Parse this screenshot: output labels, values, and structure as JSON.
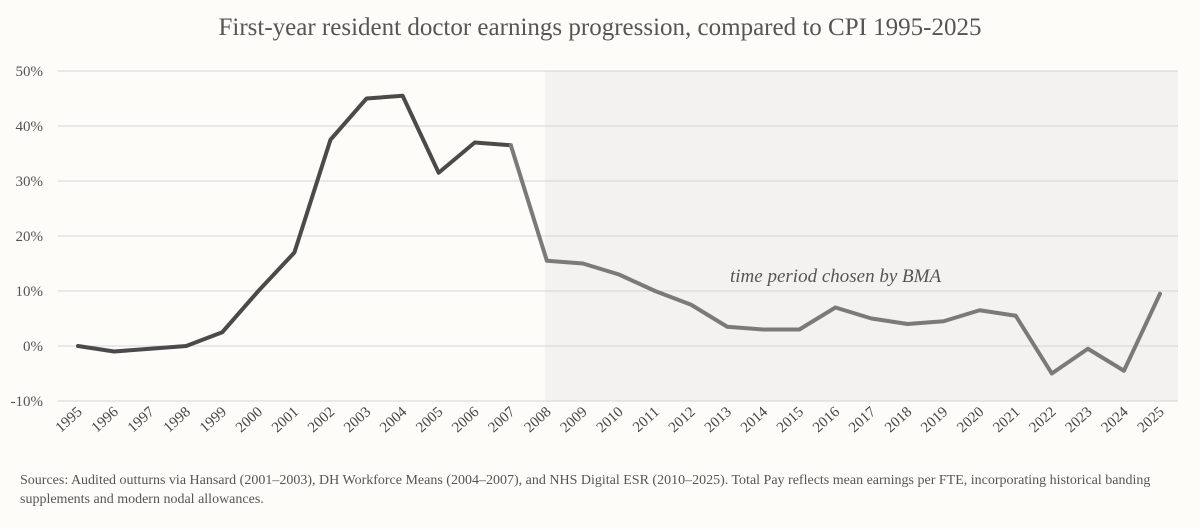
{
  "chart_data": {
    "type": "line",
    "title": "First-year resident doctor earnings progression, compared to CPI 1995-2025",
    "xlabel": "",
    "ylabel": "",
    "x": [
      "1995",
      "1996",
      "1997",
      "1998",
      "1999",
      "2000",
      "2001",
      "2002",
      "2003",
      "2004",
      "2005",
      "2006",
      "2007",
      "2008",
      "2009",
      "2010",
      "2011",
      "2012",
      "2013",
      "2014",
      "2015",
      "2016",
      "2017",
      "2018",
      "2019",
      "2020",
      "2021",
      "2022",
      "2023",
      "2024",
      "2025"
    ],
    "series": [
      {
        "values": [
          0,
          -1,
          -0.5,
          0,
          2.5,
          10,
          17,
          37.5,
          45,
          45.5,
          31.5,
          37,
          36.5,
          15.5,
          15,
          13,
          10,
          7.5,
          3.5,
          3,
          3,
          7,
          5,
          4,
          4.5,
          6.5,
          5.5,
          -5,
          -0.5,
          -4.5,
          9.5
        ],
        "color": "#4a4a4a",
        "highlight_color": "#7a7a7a"
      }
    ],
    "ylim": [
      -10,
      50
    ],
    "yticks": [
      -10,
      0,
      10,
      20,
      30,
      40,
      50
    ],
    "ytick_labels": [
      "-10%",
      "0%",
      "10%",
      "20%",
      "30%",
      "40%",
      "50%"
    ],
    "grid": true,
    "shaded_region": {
      "x_start": "2008",
      "x_end": "2025",
      "label": "time period chosen by BMA",
      "fill": "#f3f2f1"
    }
  },
  "footnote": "Sources:  Audited outturns via Hansard (2001–2003), DH Workforce Means (2004–2007), and NHS Digital ESR (2010–2025). Total Pay reflects mean earnings per FTE, incorporating historical banding supplements and modern nodal allowances."
}
